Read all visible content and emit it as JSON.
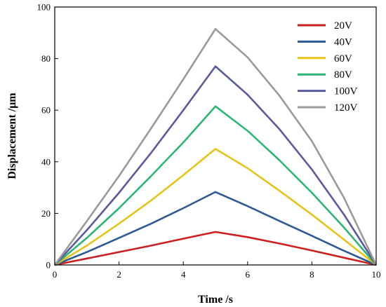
{
  "chart_data": {
    "type": "line",
    "xlabel": "Time  /s",
    "ylabel": "Displacement  /μm",
    "xlim": [
      0,
      10
    ],
    "ylim": [
      0,
      100
    ],
    "xticks": [
      0,
      2,
      4,
      6,
      8,
      10
    ],
    "yticks": [
      0,
      20,
      40,
      60,
      80,
      100
    ],
    "grid": false,
    "legend_position": "top-right",
    "series": [
      {
        "name": "20V",
        "color": "#cc1f1f",
        "x": [
          0,
          1,
          2,
          3,
          4,
          5,
          6,
          7,
          8,
          9,
          10
        ],
        "y": [
          0,
          2.5,
          5.0,
          7.5,
          10.2,
          12.8,
          10.8,
          8.3,
          5.6,
          2.8,
          0
        ]
      },
      {
        "name": "40V",
        "color": "#2d5a95",
        "x": [
          0,
          1,
          2,
          3,
          4,
          5,
          6,
          7,
          8,
          9,
          10
        ],
        "y": [
          0,
          5.0,
          10.5,
          16.0,
          22.0,
          28.3,
          22.8,
          17.0,
          11.3,
          5.5,
          0
        ]
      },
      {
        "name": "60V",
        "color": "#e8c317",
        "x": [
          0,
          1,
          2,
          3,
          4,
          5,
          6,
          7,
          8,
          9,
          10
        ],
        "y": [
          0,
          7.5,
          16.0,
          25.0,
          34.8,
          45.0,
          37.5,
          28.7,
          19.5,
          9.8,
          0
        ]
      },
      {
        "name": "80V",
        "color": "#2bb673",
        "x": [
          0,
          1,
          2,
          3,
          4,
          5,
          6,
          7,
          8,
          9,
          10
        ],
        "y": [
          0,
          10.5,
          22.0,
          34.5,
          47.5,
          61.5,
          52.0,
          40.5,
          28.0,
          14.5,
          0
        ]
      },
      {
        "name": "100V",
        "color": "#5a5a9e",
        "x": [
          0,
          1,
          2,
          3,
          4,
          5,
          6,
          7,
          8,
          9,
          10
        ],
        "y": [
          0,
          13.5,
          28.0,
          43.5,
          60.0,
          77.0,
          66.0,
          52.5,
          37.0,
          19.5,
          0
        ]
      },
      {
        "name": "120V",
        "color": "#9a9a9a",
        "x": [
          0,
          1,
          2,
          3,
          4,
          5,
          6,
          7,
          8,
          9,
          10
        ],
        "y": [
          0,
          17.0,
          34.5,
          53.0,
          72.0,
          91.5,
          80.5,
          65.5,
          48.0,
          26.0,
          0
        ]
      }
    ]
  }
}
